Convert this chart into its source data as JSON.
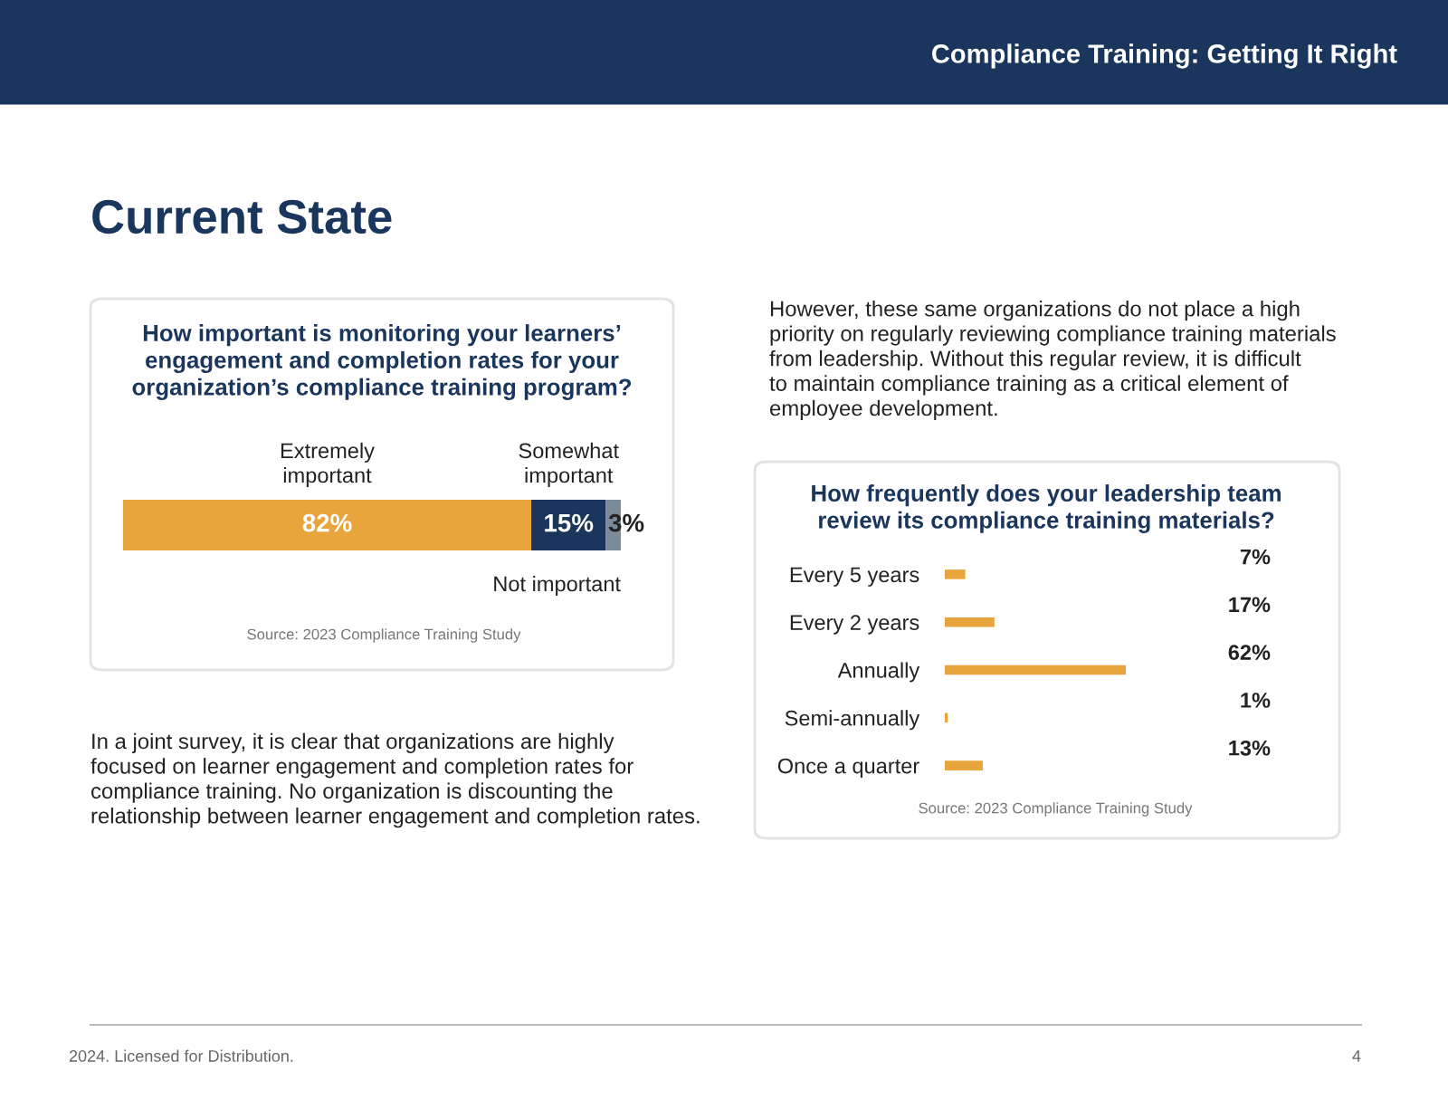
{
  "chart_data": [
    {
      "type": "bar",
      "orientation": "horizontal",
      "stacked": true,
      "tick_labels": false,
      "title": "How important is monitoring your learners’\nengagement and completion rates for your\norganization’s compliance training program?",
      "categories": [
        null
      ],
      "series": [
        {
          "name": "Extremely\nimportant",
          "color": "#e8a53c",
          "values": [
            82
          ],
          "value_labels": [
            "82%"
          ]
        },
        {
          "name": "Somewhat\nimportant",
          "color": "#1b365d",
          "values": [
            15
          ],
          "value_labels": [
            "15%"
          ]
        },
        {
          "name": "Not important",
          "color": "#7c8b98",
          "values": [
            3
          ],
          "value_labels": [
            "3%"
          ]
        }
      ],
      "annotations": [
        "Compliance Training: Getting It Right",
        "Current State",
        "Source: 2023 Compliance Training Study",
        "In a joint survey, it is clear that organizations are highly\nfocused on learner engagement and completion rates for\ncompliance training. No organization is discounting the\nrelationship between learner engagement and completion rates."
      ]
    },
    {
      "type": "bar",
      "orientation": "horizontal",
      "tick_labels": "y",
      "title": "How frequently does your leadership team\nreview its compliance training materials?",
      "categories": [
        "Every 5 years",
        "Every 2 years",
        "Annually",
        "Semi-annually",
        "Once a quarter"
      ],
      "values": [
        7,
        17,
        62,
        1,
        13
      ],
      "color": "#e8a53c",
      "value_labels": [
        "7%",
        "17%",
        "62%",
        "1%",
        "13%"
      ],
      "annotations": [
        "However, these same organizations do not place a high\npriority on regularly reviewing compliance training materials\nfrom leadership. Without this regular review, it is difficult\nto maintain compliance training as a critical element of\nemployee development.",
        "Source: 2023 Compliance Training Study",
        "2024. Licensed for Distribution.",
        "4"
      ]
    }
  ]
}
